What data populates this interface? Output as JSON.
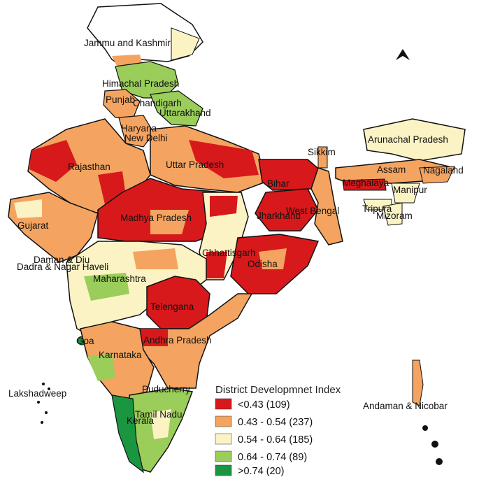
{
  "colors": {
    "low": "#d7191c",
    "lower_mid": "#f4a460",
    "mid": "#fbf3c4",
    "upper_mid": "#9acd5a",
    "high": "#1a9641",
    "border": "#111111",
    "district_border": "#ffffff"
  },
  "north_arrow": {
    "icon": "north-arrow-icon"
  },
  "state_labels": [
    "Jammu and Kashmir",
    "Himachal Pradesh",
    "Punjab",
    "Chandigarh",
    "Uttarakhand",
    "Haryana",
    "New Delhi",
    "Rajasthan",
    "Uttar Pradesh",
    "Bihar",
    "Sikkim",
    "Arunachal Pradesh",
    "Assam",
    "Nagaland",
    "Meghalaya",
    "Manipur",
    "Tripura",
    "Mizoram",
    "West Bengal",
    "Jharkhand",
    "Gujarat",
    "Madhya Pradesh",
    "Chhattisgarh",
    "Odisha",
    "Daman & Diu",
    "Dadra & Nagar Haveli",
    "Maharashtra",
    "Telengana",
    "Goa",
    "Andhra Pradesh",
    "Karnataka",
    "Lakshadweep",
    "Puducherry",
    "Tamil Nadu",
    "Kerala",
    "Andaman & Nicobar"
  ],
  "legend": {
    "title": "District Developmnet Index",
    "items": [
      {
        "label": "<0.43 (109)",
        "color": "#d7191c"
      },
      {
        "label": "0.43 - 0.54 (237)",
        "color": "#f4a460"
      },
      {
        "label": "0.54 - 0.64 (185)",
        "color": "#fbf3c4"
      },
      {
        "label": "0.64 - 0.74 (89)",
        "color": "#9acd5a"
      },
      {
        "label": ">0.74 (20)",
        "color": "#1a9641"
      }
    ]
  }
}
